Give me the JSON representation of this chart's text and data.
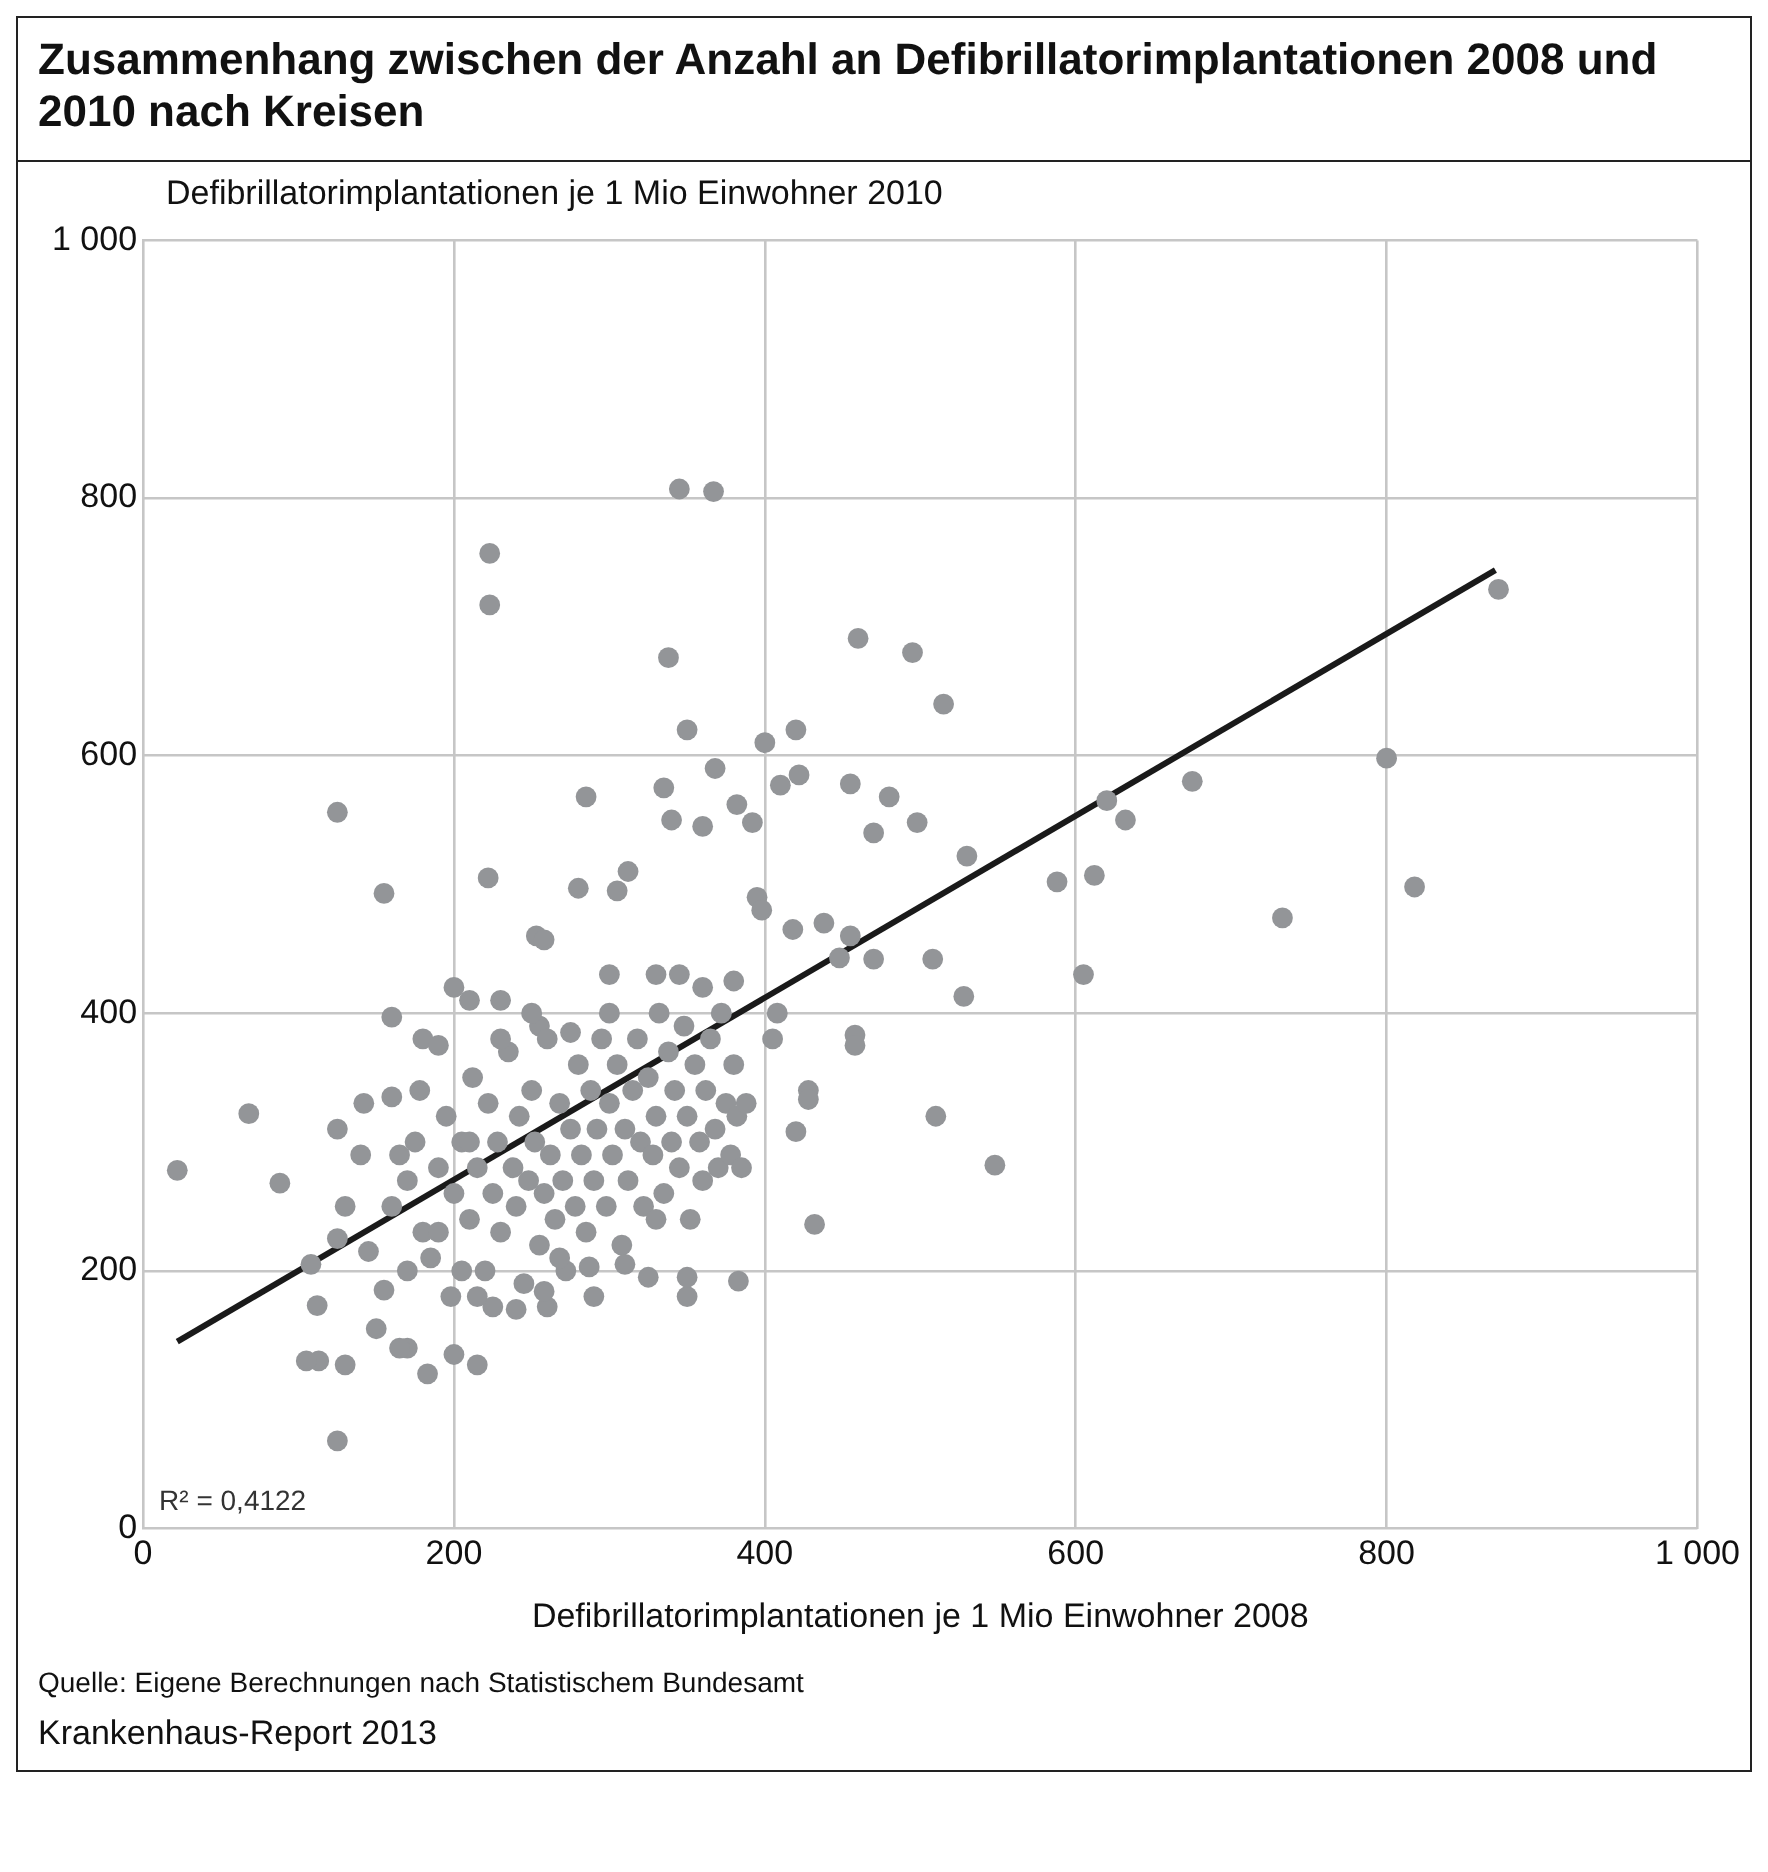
{
  "chart_data": {
    "type": "scatter",
    "title": "Zusammenhang zwischen der Anzahl an Defibrillatorimplantationen 2008 und 2010 nach Kreisen",
    "xlabel": "Defibrillatorimplantationen je 1 Mio Einwohner 2008",
    "ylabel": "Defibrillatorimplantationen je 1 Mio Einwohner 2010",
    "annotations": [
      "R² = 0,4122",
      "Quelle: Eigene Berechnungen nach Statistischem Bundesamt",
      "Krankenhaus-Report 2013"
    ],
    "xlim": [
      0,
      1000
    ],
    "ylim": [
      0,
      1000
    ],
    "xticks": [
      0,
      200,
      400,
      600,
      800,
      {
        "value": 1000,
        "label": "1 000"
      }
    ],
    "yticks": [
      0,
      200,
      400,
      600,
      800,
      {
        "value": 1000,
        "label": "1 000"
      }
    ],
    "grid": true,
    "legend": false,
    "series": [
      {
        "marker": "circle",
        "color": "#939598",
        "x": [
          22,
          68,
          88,
          125,
          155,
          160,
          113,
          125,
          223,
          223,
          345,
          367,
          338,
          460,
          495,
          515,
          350,
          420,
          368,
          400,
          410,
          422,
          455,
          480,
          498,
          392,
          382,
          360,
          470,
          335,
          285,
          340,
          312,
          305,
          280,
          222,
          253,
          258,
          530,
          588,
          612,
          620,
          632,
          675,
          800,
          872,
          818,
          733,
          605,
          508,
          528,
          470,
          455,
          438,
          418,
          395,
          398,
          448,
          458,
          458,
          428,
          428,
          510,
          548,
          432,
          420,
          405,
          408,
          383,
          350,
          350,
          325,
          287,
          260,
          258,
          225,
          215,
          200,
          183,
          170,
          165,
          150,
          130,
          105,
          112,
          108,
          125,
          130,
          140,
          125,
          142,
          160,
          180,
          190,
          200,
          210,
          230,
          255,
          300,
          330,
          345,
          360,
          380,
          160,
          170,
          175,
          180,
          185,
          190,
          195,
          200,
          205,
          210,
          212,
          215,
          220,
          222,
          225,
          228,
          230,
          235,
          238,
          240,
          242,
          245,
          248,
          250,
          252,
          255,
          258,
          260,
          262,
          265,
          268,
          270,
          272,
          275,
          278,
          280,
          282,
          285,
          288,
          290,
          292,
          295,
          298,
          300,
          302,
          305,
          308,
          310,
          312,
          315,
          318,
          320,
          322,
          325,
          328,
          330,
          332,
          335,
          338,
          340,
          342,
          345,
          348,
          350,
          352,
          355,
          358,
          360,
          362,
          365,
          368,
          370,
          372,
          375,
          378,
          380,
          382,
          385,
          388,
          300,
          275,
          250,
          230,
          210,
          190,
          170,
          155,
          145,
          165,
          178,
          198,
          215,
          205,
          240,
          268,
          310,
          330,
          290
        ],
        "values": [
          278,
          322,
          268,
          556,
          493,
          397,
          130,
          68,
          757,
          717,
          807,
          805,
          676,
          691,
          680,
          640,
          620,
          620,
          590,
          610,
          577,
          585,
          578,
          568,
          548,
          548,
          562,
          545,
          540,
          575,
          568,
          550,
          510,
          495,
          497,
          505,
          460,
          457,
          522,
          502,
          507,
          565,
          550,
          580,
          598,
          729,
          498,
          474,
          430,
          442,
          413,
          442,
          460,
          470,
          465,
          490,
          480,
          443,
          383,
          375,
          340,
          333,
          320,
          282,
          236,
          308,
          380,
          400,
          192,
          180,
          195,
          195,
          203,
          172,
          184,
          172,
          127,
          135,
          120,
          140,
          140,
          155,
          127,
          130,
          173,
          205,
          225,
          250,
          290,
          310,
          330,
          335,
          380,
          375,
          420,
          410,
          410,
          390,
          430,
          430,
          430,
          420,
          425,
          250,
          270,
          300,
          230,
          210,
          280,
          320,
          260,
          300,
          240,
          350,
          280,
          200,
          330,
          260,
          300,
          230,
          370,
          280,
          250,
          320,
          190,
          270,
          340,
          300,
          220,
          260,
          380,
          290,
          240,
          330,
          270,
          200,
          310,
          250,
          360,
          290,
          230,
          340,
          270,
          310,
          380,
          250,
          330,
          290,
          360,
          220,
          310,
          270,
          340,
          380,
          300,
          250,
          350,
          290,
          320,
          400,
          260,
          370,
          300,
          340,
          280,
          390,
          320,
          240,
          360,
          300,
          270,
          340,
          380,
          310,
          280,
          400,
          330,
          290,
          360,
          320,
          280,
          330,
          400,
          385,
          400,
          380,
          300,
          230,
          200,
          185,
          215,
          290,
          340,
          180,
          180,
          200,
          170,
          210,
          205,
          240,
          180
        ]
      },
      {
        "type": "line",
        "marker": "none",
        "color": "#1a1a1a",
        "x": [
          22,
          870
        ],
        "values": [
          145,
          744
        ]
      }
    ]
  }
}
